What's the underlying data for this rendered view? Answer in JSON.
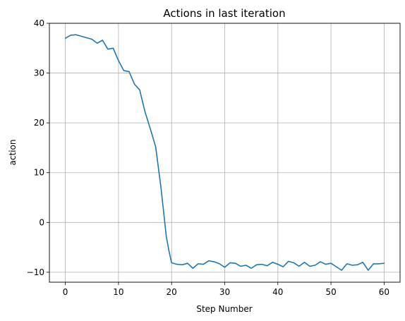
{
  "chart_data": {
    "type": "line",
    "title": "Actions in last iteration",
    "xlabel": "Step Number",
    "ylabel": "action",
    "xlim": [
      -3,
      63
    ],
    "ylim": [
      -12,
      40
    ],
    "xticks": [
      0,
      10,
      20,
      30,
      40,
      50,
      60
    ],
    "yticks": [
      -10,
      0,
      10,
      20,
      30,
      40
    ],
    "grid": true,
    "line_color": "#1f77b4",
    "series": [
      {
        "x": [
          0,
          1,
          2,
          3,
          4,
          5,
          6,
          7,
          8,
          9,
          10,
          11,
          12,
          13,
          14,
          15,
          16,
          17,
          18,
          19,
          19.5,
          20,
          21,
          22,
          23,
          24,
          25,
          26,
          27,
          28,
          29,
          30,
          31,
          32,
          33,
          34,
          35,
          36,
          37,
          38,
          39,
          40,
          41,
          42,
          43,
          44,
          45,
          46,
          47,
          48,
          49,
          50,
          51,
          52,
          53,
          54,
          55,
          56,
          57,
          58,
          59,
          60
        ],
        "values": [
          37.0,
          37.6,
          37.7,
          37.4,
          37.1,
          36.8,
          36.0,
          36.6,
          34.8,
          35.0,
          32.5,
          30.5,
          30.3,
          27.8,
          26.6,
          22.2,
          18.8,
          15.2,
          7.0,
          -2.8,
          -5.7,
          -8.1,
          -8.4,
          -8.5,
          -8.2,
          -9.2,
          -8.3,
          -8.4,
          -7.7,
          -7.9,
          -8.3,
          -9.0,
          -8.1,
          -8.2,
          -8.8,
          -8.6,
          -9.2,
          -8.5,
          -8.4,
          -8.7,
          -8.0,
          -8.4,
          -8.9,
          -7.8,
          -8.1,
          -8.8,
          -8.0,
          -8.8,
          -8.6,
          -7.9,
          -8.4,
          -8.2,
          -8.9,
          -9.6,
          -8.3,
          -8.6,
          -8.5,
          -8.0,
          -9.6,
          -8.3,
          -8.3,
          -8.2
        ]
      }
    ]
  }
}
